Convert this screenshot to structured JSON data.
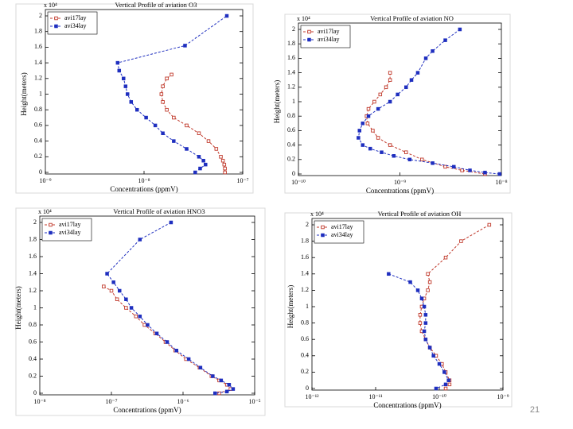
{
  "chart_data": [
    {
      "type": "line",
      "title": "Vertical Profile of aviation O3",
      "xlabel": "Concentrations (ppmV)",
      "ylabel": "Height(meters)",
      "y_scale_label": "x 10⁴",
      "log_x": true,
      "xlim": [
        1e-09,
        1e-07
      ],
      "xticks": [
        {
          "value": 1e-09,
          "label": "10⁻⁹"
        },
        {
          "value": 1e-08,
          "label": "10⁻⁸"
        },
        {
          "value": 1e-07,
          "label": "10⁻⁷"
        }
      ],
      "ylim": [
        0,
        2
      ],
      "yticks": [
        0,
        0.2,
        0.4,
        0.6,
        0.8,
        1,
        1.2,
        1.4,
        1.6,
        1.8,
        2
      ],
      "series": [
        {
          "name": "avi17lay",
          "color": "#c0392b",
          "x": [
            6.6e-08,
            6.6e-08,
            6.5e-08,
            6.3e-08,
            6e-08,
            5.4e-08,
            4.5e-08,
            3.6e-08,
            2.7e-08,
            2e-08,
            1.7e-08,
            1.55e-08,
            1.5e-08,
            1.55e-08,
            1.7e-08,
            1.9e-08
          ],
          "values": [
            0,
            0.05,
            0.1,
            0.15,
            0.2,
            0.3,
            0.4,
            0.5,
            0.6,
            0.7,
            0.8,
            0.9,
            1.0,
            1.1,
            1.2,
            1.25
          ]
        },
        {
          "name": "avi34lay",
          "color": "#1f2fbf",
          "x": [
            3.3e-08,
            3.7e-08,
            4.2e-08,
            4e-08,
            3.6e-08,
            2.7e-08,
            2e-08,
            1.55e-08,
            1.3e-08,
            1.05e-08,
            8.5e-09,
            7.4e-09,
            6.8e-09,
            6.5e-09,
            6.2e-09,
            5.6e-09,
            5.4e-09,
            2.6e-08,
            6.9e-08
          ],
          "values": [
            0,
            0.05,
            0.1,
            0.15,
            0.2,
            0.3,
            0.4,
            0.5,
            0.6,
            0.7,
            0.8,
            0.9,
            1.0,
            1.1,
            1.2,
            1.3,
            1.4,
            1.62,
            2.0
          ]
        }
      ]
    },
    {
      "type": "line",
      "title": "Vertical Profile of aviation NO",
      "xlabel": "Concentrations (ppmV)",
      "ylabel": "Height(meters)",
      "y_scale_label": "x 10⁴",
      "log_x": true,
      "xlim": [
        1e-10,
        1e-08
      ],
      "xticks": [
        {
          "value": 1e-10,
          "label": "10⁻¹⁰"
        },
        {
          "value": 1e-09,
          "label": "10⁻⁹"
        },
        {
          "value": 1e-08,
          "label": "10⁻⁸"
        }
      ],
      "ylim": [
        0,
        2
      ],
      "yticks": [
        0,
        0.2,
        0.4,
        0.6,
        0.8,
        1,
        1.2,
        1.4,
        1.6,
        1.8,
        2
      ],
      "series": [
        {
          "name": "avi17lay",
          "color": "#c0392b",
          "x": [
            8e-10,
            8e-10,
            7.3e-10,
            6.4e-10,
            5.6e-10,
            4.9e-10,
            4.7e-10,
            4.8e-10,
            5.4e-10,
            6.1e-10,
            8e-10,
            1.15e-09,
            1.65e-09,
            2.8e-09,
            4.1e-09,
            6.9e-09
          ],
          "values": [
            1.4,
            1.3,
            1.2,
            1.1,
            1.0,
            0.9,
            0.8,
            0.7,
            0.6,
            0.5,
            0.4,
            0.3,
            0.2,
            0.1,
            0.05,
            0
          ]
        },
        {
          "name": "avi34lay",
          "color": "#1f2fbf",
          "x": [
            3.9e-09,
            2.8e-09,
            2.1e-09,
            1.8e-09,
            1.5e-09,
            1.3e-09,
            1.15e-09,
            9.5e-10,
            8e-10,
            6.1e-10,
            4.9e-10,
            4.3e-10,
            4e-10,
            3.9e-10,
            4.3e-10,
            5.1e-10,
            6.6e-10,
            8.7e-10,
            1.25e-09,
            2.1e-09,
            3.4e-09,
            4.9e-09,
            6.9e-09,
            9.6e-09
          ],
          "values": [
            2.0,
            1.85,
            1.7,
            1.6,
            1.4,
            1.3,
            1.2,
            1.1,
            1.0,
            0.9,
            0.8,
            0.7,
            0.6,
            0.5,
            0.4,
            0.35,
            0.3,
            0.25,
            0.2,
            0.15,
            0.1,
            0.05,
            0.02,
            0
          ]
        }
      ]
    },
    {
      "type": "line",
      "title": "Vertical Profile of aviation HNO3",
      "xlabel": "Concentrations (ppmV)",
      "ylabel": "Height(meters)",
      "y_scale_label": "x 10⁴",
      "log_x": true,
      "xlim": [
        1e-08,
        1e-05
      ],
      "xticks": [
        {
          "value": 1e-08,
          "label": "10⁻⁸"
        },
        {
          "value": 1e-07,
          "label": "10⁻⁷"
        },
        {
          "value": 1e-06,
          "label": "10⁻⁶"
        },
        {
          "value": 1e-05,
          "label": "10⁻⁵"
        }
      ],
      "ylim": [
        0,
        2
      ],
      "yticks": [
        0,
        0.2,
        0.4,
        0.6,
        0.8,
        1,
        1.2,
        1.4,
        1.6,
        1.8,
        2
      ],
      "series": [
        {
          "name": "avi17lay",
          "color": "#c0392b",
          "x": [
            7.8e-08,
            1e-07,
            1.2e-07,
            1.6e-07,
            2.2e-07,
            2.9e-07,
            4.1e-07,
            5.7e-07,
            7.8e-07,
            1.1e-06,
            1.7e-06,
            2.5e-06,
            3.2e-06,
            4.1e-06,
            4.6e-06,
            3.2e-06
          ],
          "values": [
            1.25,
            1.2,
            1.1,
            1.0,
            0.9,
            0.8,
            0.7,
            0.6,
            0.5,
            0.4,
            0.3,
            0.2,
            0.15,
            0.1,
            0.05,
            0
          ]
        },
        {
          "name": "avi34lay",
          "color": "#1f2fbf",
          "x": [
            6.8e-07,
            2.5e-07,
            8.7e-08,
            1.07e-07,
            1.3e-07,
            1.6e-07,
            1.9e-07,
            2.5e-07,
            3.2e-07,
            4.3e-07,
            6e-07,
            8.1e-07,
            1.2e-06,
            1.75e-06,
            2.6e-06,
            3.4e-06,
            4.4e-06,
            5e-06,
            4.1e-06,
            2.8e-06
          ],
          "values": [
            2.0,
            1.8,
            1.4,
            1.3,
            1.2,
            1.1,
            1.0,
            0.9,
            0.8,
            0.7,
            0.6,
            0.5,
            0.4,
            0.3,
            0.2,
            0.15,
            0.1,
            0.05,
            0.02,
            0
          ]
        }
      ]
    },
    {
      "type": "line",
      "title": "Vertical Profile of aviation OH",
      "xlabel": "Concentrations (ppmV)",
      "ylabel": "Height(meters)",
      "y_scale_label": "x 10⁴",
      "log_x": true,
      "xlim": [
        1e-12,
        1e-09
      ],
      "xticks": [
        {
          "value": 1e-12,
          "label": "10⁻¹²"
        },
        {
          "value": 1e-11,
          "label": "10⁻¹¹"
        },
        {
          "value": 1e-10,
          "label": "10⁻¹⁰"
        },
        {
          "value": 1e-09,
          "label": "10⁻⁹"
        }
      ],
      "ylim": [
        0,
        2
      ],
      "yticks": [
        0,
        0.2,
        0.4,
        0.6,
        0.8,
        1,
        1.2,
        1.4,
        1.6,
        1.8,
        2
      ],
      "series": [
        {
          "name": "avi17lay",
          "color": "#c0392b",
          "x": [
            6.1e-10,
            2.2e-10,
            1.26e-10,
            6.6e-11,
            7.1e-11,
            6.6e-11,
            5.8e-11,
            5.3e-11,
            5e-11,
            5e-11,
            5.3e-11,
            6.1e-11,
            7.1e-11,
            8.9e-11,
            1.1e-10,
            1.26e-10,
            1.45e-10,
            1.45e-10,
            1.26e-10
          ],
          "values": [
            2.0,
            1.8,
            1.6,
            1.4,
            1.3,
            1.2,
            1.1,
            1.0,
            0.9,
            0.8,
            0.7,
            0.6,
            0.5,
            0.4,
            0.3,
            0.2,
            0.1,
            0.05,
            0
          ]
        },
        {
          "name": "avi34lay",
          "color": "#1f2fbf",
          "x": [
            1.6e-11,
            3.5e-11,
            4.6e-11,
            5.3e-11,
            5.8e-11,
            6.1e-11,
            6.1e-11,
            5.8e-11,
            6.1e-11,
            7.1e-11,
            8.1e-11,
            1e-10,
            1.2e-10,
            1.4e-10,
            1.26e-10,
            8.9e-11
          ],
          "values": [
            1.4,
            1.3,
            1.2,
            1.1,
            1.0,
            0.9,
            0.8,
            0.7,
            0.6,
            0.5,
            0.4,
            0.3,
            0.2,
            0.1,
            0.05,
            0
          ]
        }
      ]
    }
  ],
  "page_number": "21"
}
